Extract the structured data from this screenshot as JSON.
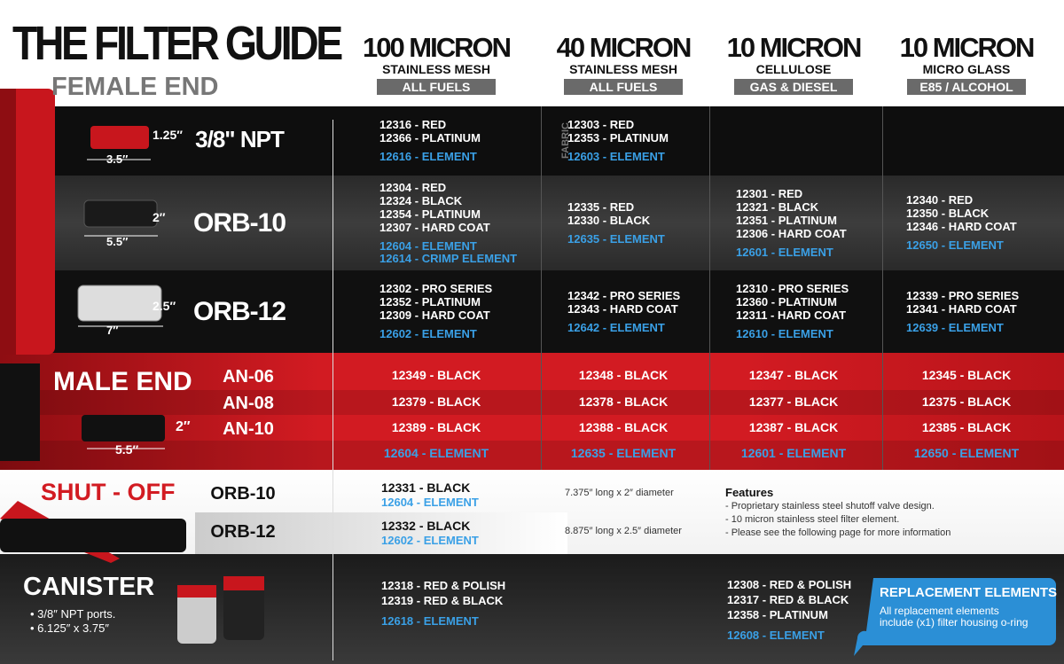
{
  "header": {
    "title": "THE FILTER GUIDE",
    "subtitle": "FEMALE END"
  },
  "columns": [
    {
      "micron": "100 MICRON",
      "media": "STAINLESS MESH",
      "fuel": "ALL FUELS"
    },
    {
      "micron": "40 MICRON",
      "media": "STAINLESS MESH",
      "fuel": "ALL FUELS"
    },
    {
      "micron": "10 MICRON",
      "media": "CELLULOSE",
      "fuel": "GAS & DIESEL"
    },
    {
      "micron": "10 MICRON",
      "media": "MICRO GLASS",
      "fuel": "E85 / ALCOHOL"
    }
  ],
  "female_end": {
    "rows": [
      {
        "size": "3/8\" NPT",
        "dims": [
          "1.25″",
          "3.5″"
        ],
        "cells": [
          {
            "parts": [
              "12316 - RED",
              "12366 - PLATINUM"
            ],
            "elements": [
              "12616 - ELEMENT"
            ]
          },
          {
            "note": "FABRIC",
            "parts": [
              "12303 - RED",
              "12353 - PLATINUM"
            ],
            "elements": [
              "12603 - ELEMENT"
            ]
          },
          {
            "parts": [],
            "elements": []
          },
          {
            "parts": [],
            "elements": []
          }
        ]
      },
      {
        "size": "ORB-10",
        "dims": [
          "2″",
          "5.5″"
        ],
        "cells": [
          {
            "parts": [
              "12304 - RED",
              "12324 - BLACK",
              "12354 - PLATINUM",
              "12307 - HARD COAT"
            ],
            "elements": [
              "12604 - ELEMENT",
              "12614 - CRIMP ELEMENT"
            ]
          },
          {
            "parts": [
              "12335 - RED",
              "12330 - BLACK"
            ],
            "elements": [
              "12635 - ELEMENT"
            ]
          },
          {
            "parts": [
              "12301 - RED",
              "12321 - BLACK",
              "12351 - PLATINUM",
              "12306 - HARD COAT"
            ],
            "elements": [
              "12601 - ELEMENT"
            ]
          },
          {
            "parts": [
              "12340 - RED",
              "12350 - BLACK",
              "12346 - HARD COAT"
            ],
            "elements": [
              "12650 - ELEMENT"
            ]
          }
        ]
      },
      {
        "size": "ORB-12",
        "dims": [
          "2.5″",
          "7″"
        ],
        "cells": [
          {
            "parts": [
              "12302 - PRO SERIES",
              "12352 - PLATINUM",
              "12309 - HARD COAT"
            ],
            "elements": [
              "12602 - ELEMENT"
            ]
          },
          {
            "parts": [
              "12342 - PRO SERIES",
              "12343 - HARD COAT"
            ],
            "elements": [
              "12642 - ELEMENT"
            ]
          },
          {
            "parts": [
              "12310 - PRO SERIES",
              "12360 - PLATINUM",
              "12311 - HARD COAT"
            ],
            "elements": [
              "12610 - ELEMENT"
            ]
          },
          {
            "parts": [
              "12339 - PRO SERIES",
              "12341 - HARD COAT"
            ],
            "elements": [
              "12639 - ELEMENT"
            ]
          }
        ]
      }
    ]
  },
  "male_end": {
    "title": "MALE END",
    "dims": [
      "2″",
      "5.5″"
    ],
    "rows": [
      {
        "size": "AN-06",
        "parts": [
          "12349 - BLACK",
          "12348 - BLACK",
          "12347 - BLACK",
          "12345 - BLACK"
        ]
      },
      {
        "size": "AN-08",
        "parts": [
          "12379 - BLACK",
          "12378 - BLACK",
          "12377 - BLACK",
          "12375 - BLACK"
        ]
      },
      {
        "size": "AN-10",
        "parts": [
          "12389 - BLACK",
          "12388 - BLACK",
          "12387 - BLACK",
          "12385 - BLACK"
        ]
      }
    ],
    "elements": [
      "12604 - ELEMENT",
      "12635 - ELEMENT",
      "12601 - ELEMENT",
      "12650 - ELEMENT"
    ]
  },
  "shut_off": {
    "title": "SHUT - OFF",
    "rows": [
      {
        "size": "ORB-10",
        "part": "12331 - BLACK",
        "element": "12604 - ELEMENT",
        "dims": "7.375″ long x 2″ diameter"
      },
      {
        "size": "ORB-12",
        "part": "12332 - BLACK",
        "element": "12602 - ELEMENT",
        "dims": "8.875″ long x 2.5″ diameter"
      }
    ],
    "features": {
      "title": "Features",
      "items": [
        "- Proprietary stainless steel shutoff valve design.",
        "- 10 micron stainless steel filter element.",
        "- Please see the following page for more information"
      ]
    }
  },
  "canister": {
    "title": "CANISTER",
    "notes": [
      "• 3/8″ NPT ports.",
      "• 6.125″ x 3.75″"
    ],
    "cells": [
      {
        "parts": [
          "12318 - RED & POLISH",
          "12319 - RED & BLACK"
        ],
        "elements": [
          "12618 - ELEMENT"
        ]
      },
      {
        "parts": [
          "12308 - RED & POLISH",
          "12317 - RED & BLACK",
          "12358 - PLATINUM"
        ],
        "elements": [
          "12608 - ELEMENT"
        ]
      }
    ]
  },
  "callout": {
    "title": "REPLACEMENT ELEMENTS",
    "lines": [
      "All replacement elements",
      "include (x1) filter housing o-ring"
    ]
  }
}
